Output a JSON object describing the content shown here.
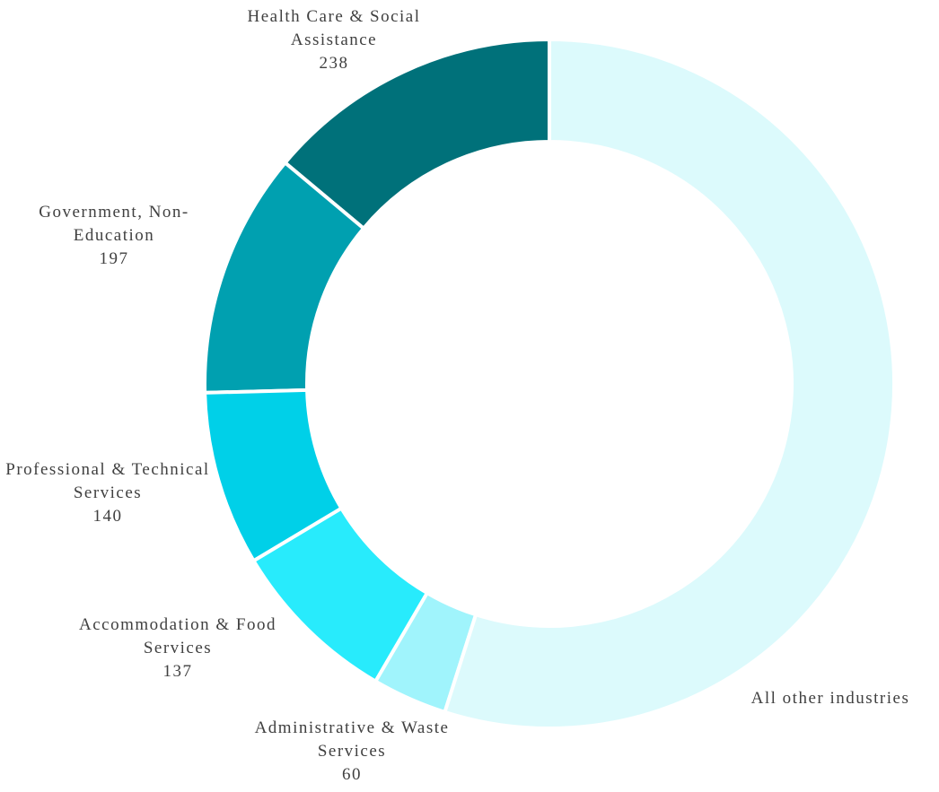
{
  "chart_data": {
    "type": "donut",
    "categories": [
      "Health Care & Social Assistance",
      "Government, Non-Education",
      "Professional & Technical Services",
      "Accommodation & Food Services",
      "Administrative & Waste Services",
      "All other industries"
    ],
    "values": [
      238,
      197,
      140,
      137,
      60,
      940
    ],
    "colors": [
      "#00717a",
      "#00a0b0",
      "#00d0e8",
      "#28ebfc",
      "#a0f4fc",
      "#dcfafc"
    ]
  }
}
